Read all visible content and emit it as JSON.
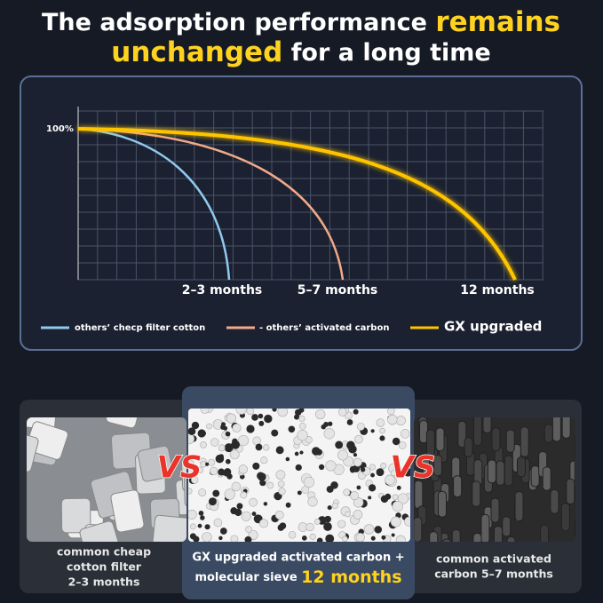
{
  "header": {
    "line1": [
      "The adsorption performance",
      "remains"
    ],
    "line2": [
      "unchanged",
      "for a long time"
    ]
  },
  "chart": {
    "y_label": "100%",
    "x_labels": [
      "2–3 months",
      "5–7 months",
      "12 months"
    ],
    "legend": [
      "others’ checp filter cotton",
      "- others’ activated carbon",
      "GX upgraded"
    ]
  },
  "comparison": {
    "vs": [
      "VS",
      "VS"
    ],
    "products": [
      {
        "lines": [
          "common cheap",
          "cotton filter",
          "2–3 months"
        ]
      },
      {
        "lines": [
          "GX upgraded activated carbon +",
          "molecular sieve"
        ],
        "highlight": "12 months"
      },
      {
        "lines": [
          "common activated",
          "carbon 5–7 months"
        ]
      }
    ]
  }
}
